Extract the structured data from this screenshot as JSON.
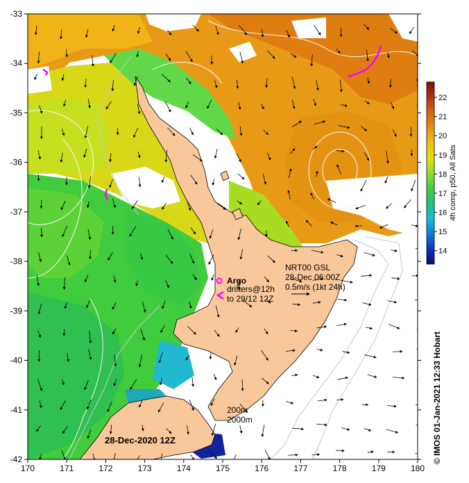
{
  "map": {
    "date_label": "28-Dec-2020 12Z",
    "credit": "© IMOS 01-Jan-2021 12:33 Hobart",
    "lon_ticks": [
      "170",
      "171",
      "172",
      "173",
      "174",
      "175",
      "176",
      "177",
      "178",
      "179",
      "180"
    ],
    "lat_ticks": [
      "-33",
      "-34",
      "-35",
      "-36",
      "-37",
      "-38",
      "-39",
      "-40",
      "-41",
      "-42"
    ],
    "lon_range": [
      170,
      180
    ],
    "lat_range": [
      -42,
      -33
    ]
  },
  "colorbar": {
    "label": "4h comp, p50, All Sats",
    "ticks": [
      "22",
      "21",
      "20",
      "19",
      "18",
      "17",
      "16",
      "15",
      "14"
    ],
    "range": [
      13.3,
      22.8
    ],
    "colors": [
      "#0a0a7a",
      "#1030c0",
      "#1080e0",
      "#10c0d8",
      "#20c080",
      "#40d040",
      "#90e020",
      "#e0e010",
      "#f0c010",
      "#e89010",
      "#d86010",
      "#b03010",
      "#801008"
    ]
  },
  "legend": {
    "argo": "Argo",
    "drifters": "drifters@12h",
    "drifters_to": "to 29/12 12Z",
    "source": "NRT00 GSL",
    "datetime": "28-Dec 06:00Z",
    "scale": "0.5m/s (1kt 24h)"
  },
  "contours": {
    "label_200": "200m",
    "label_2000": "2000m"
  },
  "colors": {
    "land": "#f9c89a",
    "coast": "#000000",
    "contour": "#d8d8d8",
    "argo": "#ff00ff"
  }
}
